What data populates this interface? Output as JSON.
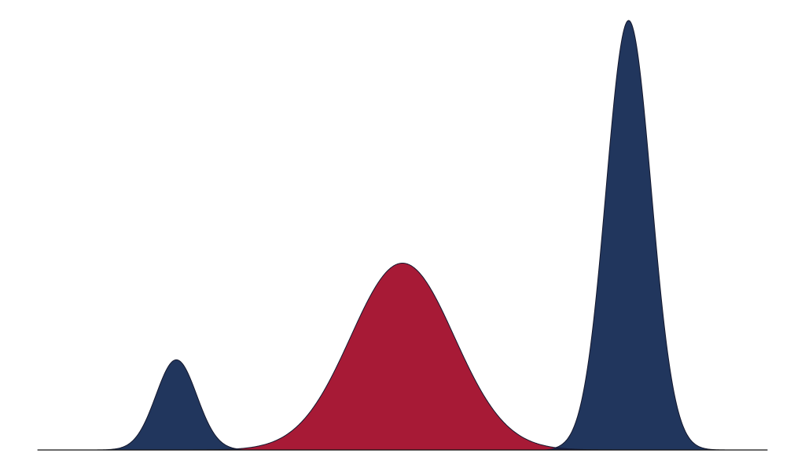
{
  "chart_data": {
    "type": "area",
    "description_free": true,
    "x_range": [
      0,
      100
    ],
    "y_range": [
      0,
      1
    ],
    "grid": false,
    "legend": "none",
    "series": [
      {
        "key": "left-peak",
        "color": "#21365d",
        "overlap_color": "#1a1f45",
        "center": 19,
        "spread": 2.8,
        "peak": 0.21
      },
      {
        "key": "middle-peak",
        "color": "#a71a36",
        "center": 50,
        "spread": 7.1,
        "peak": 0.435
      },
      {
        "key": "right-peak",
        "color": "#21365d",
        "overlap_color": "#1a1f45",
        "center": 81,
        "spread": 3.1,
        "peak": 1.0
      }
    ]
  }
}
